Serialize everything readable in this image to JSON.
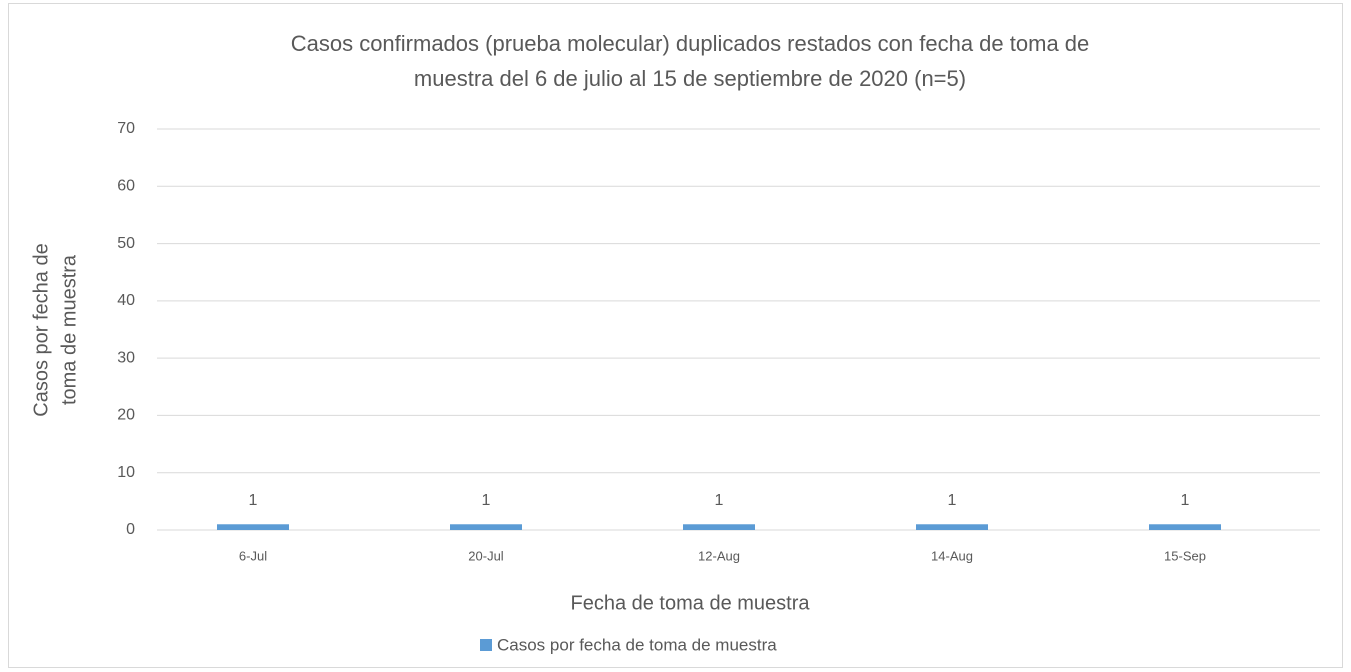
{
  "chart_data": {
    "type": "bar",
    "title": [
      "Casos confirmados (prueba molecular) duplicados restados con fecha de toma de",
      "muestra del 6 de julio al 15 de septiembre de 2020 (n=5)"
    ],
    "x_label": "Fecha de toma de muestra",
    "y_label": [
      "Casos por fecha de",
      "toma de muestra"
    ],
    "categories": [
      "6-Jul",
      "20-Jul",
      "12-Aug",
      "14-Aug",
      "15-Sep"
    ],
    "series": [
      {
        "name": "Casos por fecha de toma de muestra",
        "color": "#5b9bd5",
        "values": [
          1,
          1,
          1,
          1,
          1
        ]
      }
    ],
    "ylim": [
      0,
      70
    ],
    "yticks": [
      0,
      10,
      20,
      30,
      40,
      50,
      60,
      70
    ],
    "grid": true,
    "legend": "bottom"
  }
}
